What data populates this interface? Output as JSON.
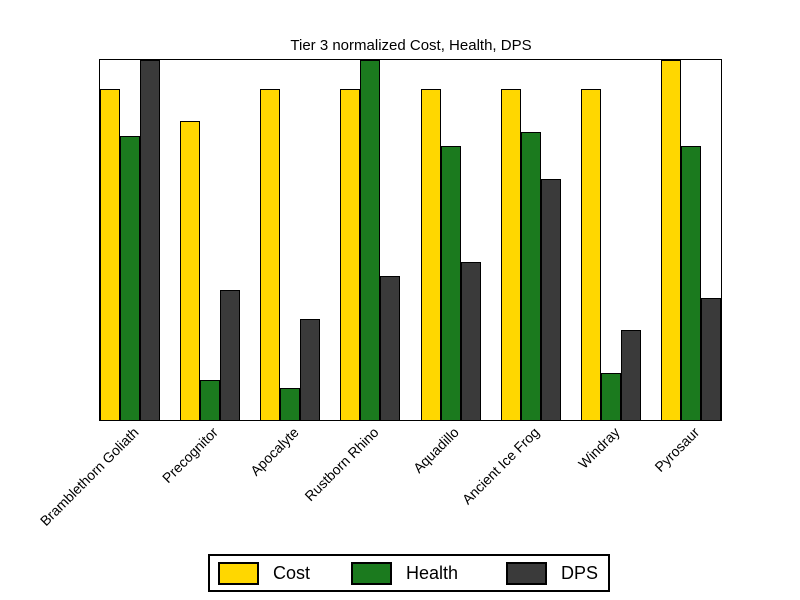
{
  "title": "Tier 3 normalized Cost, Health, DPS",
  "chart_data": {
    "type": "bar",
    "title": "Tier 3 normalized Cost, Health, DPS",
    "categories": [
      "Bramblethorn Goliath",
      "Precognitor",
      "Apocalyte",
      "Rustborn Rhino",
      "Aquadillo",
      "Ancient Ice Frog",
      "Windray",
      "Pyrosaur"
    ],
    "series": [
      {
        "name": "Cost",
        "color": "#FFD700",
        "values": [
          0.92,
          0.83,
          0.92,
          0.92,
          0.92,
          0.92,
          0.92,
          1.0
        ]
      },
      {
        "name": "Health",
        "color": "#1B7A1E",
        "values": [
          0.79,
          0.11,
          0.09,
          1.0,
          0.76,
          0.8,
          0.13,
          0.76
        ]
      },
      {
        "name": "DPS",
        "color": "#3A3A3A",
        "values": [
          1.0,
          0.36,
          0.28,
          0.4,
          0.44,
          0.67,
          0.25,
          0.34
        ]
      }
    ],
    "xlabel": "",
    "ylabel": "",
    "ylim": [
      0,
      1
    ],
    "grid": false,
    "bar_edge_color": "#000000",
    "legend_position": "bottom-center",
    "x_tick_rotation_deg": 45
  },
  "legend": {
    "items": [
      {
        "label": "Cost",
        "color": "#FFD700"
      },
      {
        "label": "Health",
        "color": "#1B7A1E"
      },
      {
        "label": "DPS",
        "color": "#3A3A3A"
      }
    ]
  }
}
